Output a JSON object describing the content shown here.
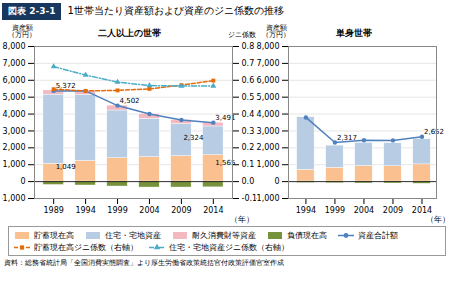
{
  "figure_label": "図表 2-3-1",
  "title": "1世帯当たり資産額および資産のジニ係数の推移",
  "caption": "資料：総務省統計局「全国消費実態調査」より厚生労働省政策統括官付政策評価官室作成",
  "chart_data": [
    {
      "type": "bar",
      "stacked": true,
      "subtitle": "二人以上の世帯",
      "x": [
        1989,
        1994,
        1999,
        2004,
        2009,
        2014
      ],
      "xlim": [
        1986,
        2017
      ],
      "xticks": [
        1989,
        1994,
        1999,
        2004,
        2009,
        2014
      ],
      "xlabel": "（年）",
      "ylabel": "資産額\n（万円）",
      "y2label": "ジニ係数",
      "ylim": [
        -1000,
        8000
      ],
      "yticks": [
        {
          "value": -1000,
          "label": "-1,000"
        },
        0,
        {
          "value": 1000,
          "label": "1,000"
        },
        {
          "value": 2000,
          "label": "2,000"
        },
        {
          "value": 3000,
          "label": "3,000"
        },
        {
          "value": 4000,
          "label": "4,000"
        },
        {
          "value": 5000,
          "label": "5,000"
        },
        {
          "value": 6000,
          "label": "6,000"
        },
        {
          "value": 7000,
          "label": "7,000"
        },
        {
          "value": 8000,
          "label": "8,000"
        }
      ],
      "y2lim": [
        -0.1,
        0.8
      ],
      "y2ticks": [
        -0.1,
        {
          "value": 0,
          "label": "0.0"
        },
        0.1,
        0.2,
        0.3,
        0.4,
        0.5,
        0.6,
        0.7,
        0.8
      ],
      "grid": true,
      "legend": "bottom",
      "series": [
        {
          "name": "貯蓄現在高",
          "type": "bar",
          "color": "#fac090",
          "values": [
            1049,
            1230,
            1390,
            1450,
            1510,
            1565
          ]
        },
        {
          "name": "住宅・宅地資産",
          "type": "bar",
          "color": "#b8cce4",
          "values": [
            4100,
            3900,
            2820,
            2270,
            1900,
            1700
          ]
        },
        {
          "name": "耐久消費財等資産",
          "type": "bar",
          "color": "#f4b8c1",
          "values": [
            250,
            240,
            290,
            280,
            240,
            226
          ]
        },
        {
          "name": "負債現在高",
          "type": "bar",
          "color": "#76923c",
          "values": [
            -200,
            -230,
            -290,
            -350,
            -350,
            -340
          ]
        },
        {
          "name": "資産合計額",
          "type": "line",
          "color": "#4f81bd",
          "marker": "circle",
          "line_style": "solid",
          "values": [
            5372,
            5374,
            4502,
            4002,
            3650,
            3491
          ]
        },
        {
          "name": "貯蓄現在高ジニ係数（右軸）",
          "type": "line",
          "axis": "y2",
          "color": "#e36c09",
          "marker": "square",
          "line_style": "dashed",
          "values": [
            0.547,
            0.537,
            0.54,
            0.549,
            0.571,
            0.598
          ]
        },
        {
          "name": "住宅・宅地資産ジニ係数（右軸）",
          "type": "line",
          "axis": "y2",
          "color": "#4bacc6",
          "marker": "triangle",
          "line_style": "dashdot",
          "values": [
            0.681,
            0.631,
            0.589,
            0.569,
            0.566,
            0.566
          ]
        }
      ],
      "annotations": [
        {
          "x": 1989,
          "y": 5372,
          "text": "5,372"
        },
        {
          "x": 1999,
          "y": 4502,
          "text": "4,502"
        },
        {
          "x": 2014,
          "y": 3491,
          "text": "3,491"
        },
        {
          "x": 1989,
          "y": 600,
          "text": "1,049"
        },
        {
          "x": 2014,
          "y": 800,
          "text": "1,565"
        },
        {
          "x": 2009,
          "y": 2324,
          "text": "2,324"
        }
      ]
    },
    {
      "type": "bar",
      "stacked": true,
      "subtitle": "単身世帯",
      "x": [
        1994,
        1999,
        2004,
        2009,
        2014
      ],
      "xlim": [
        1991,
        2016.5
      ],
      "xticks": [
        1994,
        1999,
        2004,
        2009,
        2014
      ],
      "xlabel": "（年）",
      "ylabel": "資産額\n（万円）",
      "ylim": [
        -1000,
        8000
      ],
      "yticks": [
        {
          "value": -1000,
          "label": "-1,000"
        },
        0,
        {
          "value": 1000,
          "label": "1,000"
        },
        {
          "value": 2000,
          "label": "2,000"
        },
        {
          "value": 3000,
          "label": "3,000"
        },
        {
          "value": 4000,
          "label": "4,000"
        },
        {
          "value": 5000,
          "label": "5,000"
        },
        {
          "value": 6000,
          "label": "6,000"
        },
        {
          "value": 7000,
          "label": "7,000"
        },
        {
          "value": 8000,
          "label": "8,000"
        }
      ],
      "grid": true,
      "series": [
        {
          "name": "貯蓄現在高",
          "type": "bar",
          "color": "#fac090",
          "values": [
            700,
            820,
            920,
            910,
            1020
          ]
        },
        {
          "name": "住宅・宅地資産",
          "type": "bar",
          "color": "#b8cce4",
          "values": [
            3110,
            1310,
            1370,
            1360,
            1490
          ]
        },
        {
          "name": "負債現在高",
          "type": "bar",
          "color": "#76923c",
          "values": [
            -80,
            -100,
            -110,
            -110,
            -130
          ]
        },
        {
          "name": "資産合計額",
          "type": "line",
          "color": "#4f81bd",
          "marker": "circle",
          "line_style": "solid",
          "values": [
            3800,
            2317,
            2450,
            2440,
            2652
          ]
        }
      ],
      "annotations": [
        {
          "x": 1999,
          "y": 2317,
          "text": "2,317"
        },
        {
          "x": 2014,
          "y": 2652,
          "text": "2,652"
        }
      ]
    }
  ]
}
